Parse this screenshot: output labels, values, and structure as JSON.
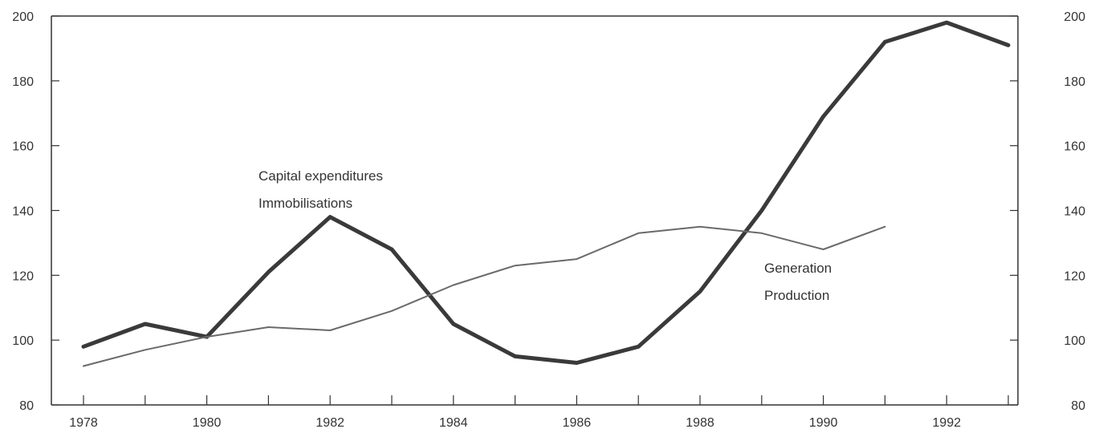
{
  "chart_data": {
    "type": "line",
    "title": "",
    "xlabel": "",
    "ylabel": "",
    "x": [
      1978,
      1979,
      1980,
      1981,
      1982,
      1983,
      1984,
      1985,
      1986,
      1987,
      1988,
      1989,
      1990,
      1991,
      1992,
      1993
    ],
    "x_tick_labels": [
      "1978",
      "1980",
      "1982",
      "1984",
      "1986",
      "1988",
      "1990",
      "1992"
    ],
    "y_tick_labels": [
      "200",
      "180",
      "160",
      "140",
      "120",
      "100",
      "80"
    ],
    "ylim": [
      80,
      200
    ],
    "y2lim": [
      80,
      200
    ],
    "grid": false,
    "series": [
      {
        "name": "Capital expenditures / Immobilisations",
        "label_lines": [
          "Capital expenditures",
          "Immobilisations"
        ],
        "color": "#3a3a3a",
        "values": [
          98,
          105,
          101,
          121,
          138,
          128,
          105,
          95,
          93,
          98,
          115,
          140,
          169,
          192,
          198,
          191
        ]
      },
      {
        "name": "Generation / Production",
        "label_lines": [
          "Generation",
          "Production"
        ],
        "color": "#6a6a6a",
        "values": [
          92,
          97,
          101,
          104,
          103,
          109,
          117,
          123,
          125,
          133,
          135,
          133,
          128,
          135,
          null,
          null
        ]
      }
    ]
  }
}
